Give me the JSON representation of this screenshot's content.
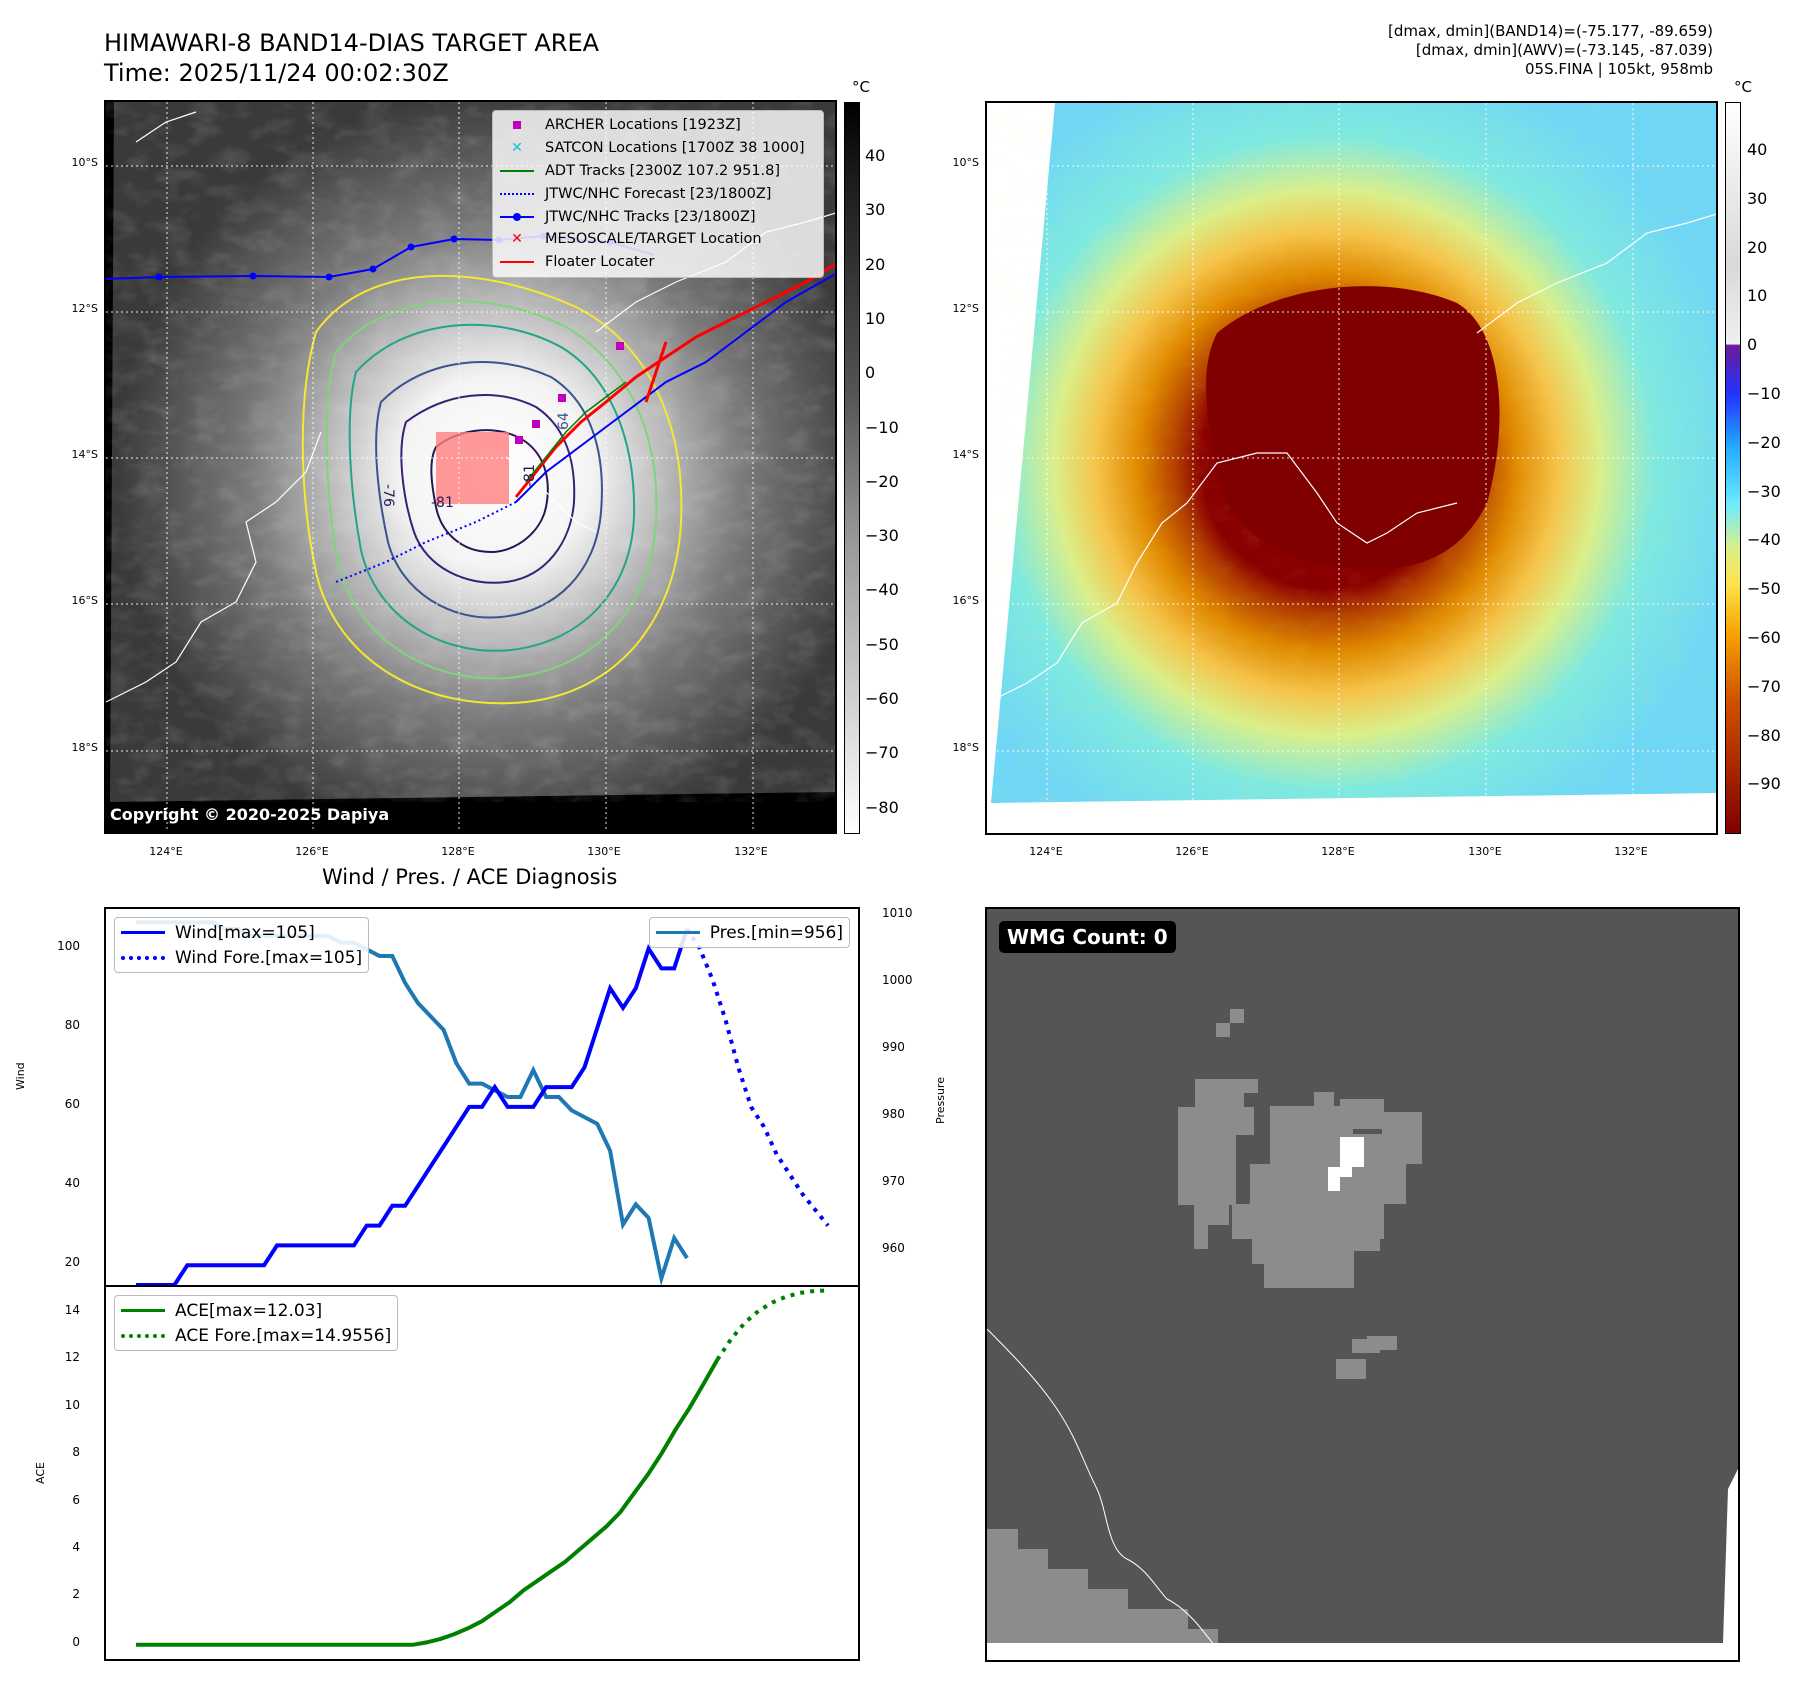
{
  "header": {
    "title_line1": "HIMAWARI-8 BAND14-DIAS TARGET AREA",
    "title_line2": "Time: 2025/11/24 00:02:30Z",
    "info_line1": "[dmax, dmin](BAND14)=(-75.177, -89.659)",
    "info_line2": "[dmax, dmin](AWV)=(-73.145, -87.039)",
    "info_line3": "05S.FINA | 105kt, 958mb"
  },
  "map": {
    "lat_labels": [
      "10°S",
      "12°S",
      "14°S",
      "16°S",
      "18°S"
    ],
    "lon_labels": [
      "124°E",
      "126°E",
      "128°E",
      "130°E",
      "132°E"
    ],
    "copyright": "Copyright © 2020-2025 Dapiya",
    "contour_labels": [
      "-76",
      "-81",
      "-81",
      "64"
    ]
  },
  "colorbar_gray": {
    "unit": "°C",
    "ticks": [
      "40",
      "30",
      "20",
      "10",
      "0",
      "−10",
      "−20",
      "−30",
      "−40",
      "−50",
      "−60",
      "−70",
      "−80"
    ]
  },
  "colorbar_color": {
    "unit": "°C",
    "ticks": [
      "40",
      "30",
      "20",
      "10",
      "0",
      "−10",
      "−20",
      "−30",
      "−40",
      "−50",
      "−60",
      "−70",
      "−80",
      "−90"
    ]
  },
  "legend": {
    "items": [
      {
        "label": "ARCHER Locations [1923Z]",
        "color": "#bf00bf",
        "symbol": "square"
      },
      {
        "label": "SATCON Locations [1700Z 38 1000]",
        "color": "#17becf",
        "symbol": "x"
      },
      {
        "label": "ADT Tracks [2300Z 107.2 951.8]",
        "color": "#008000",
        "symbol": "line"
      },
      {
        "label": "JTWC/NHC Forecast [23/1800Z]",
        "color": "#0000ff",
        "symbol": "dotted"
      },
      {
        "label": "JTWC/NHC Tracks [23/1800Z]",
        "color": "#0000ff",
        "symbol": "line-dot"
      },
      {
        "label": "MESOSCALE/TARGET Location",
        "color": "#ff0000",
        "symbol": "x"
      },
      {
        "label": "Floater Locater",
        "color": "#ff0000",
        "symbol": "line"
      }
    ]
  },
  "diagnosis": {
    "title": "Wind / Pres. / ACE Diagnosis",
    "wind_ylabel": "Wind",
    "pres_ylabel": "Pressure",
    "ace_ylabel": "ACE",
    "wind_ticks": [
      "100",
      "80",
      "60",
      "40",
      "20"
    ],
    "pres_ticks": [
      "1010",
      "1000",
      "990",
      "980",
      "970",
      "960"
    ],
    "ace_ticks": [
      "14",
      "12",
      "10",
      "8",
      "6",
      "4",
      "2",
      "0"
    ],
    "legend_wind": "Wind[max=105]",
    "legend_wind_fore": "Wind Fore.[max=105]",
    "legend_pres": "Pres.[min=956]",
    "legend_ace": "ACE[max=12.03]",
    "legend_ace_fore": "ACE Fore.[max=14.9556]"
  },
  "wmg": {
    "badge": "WMG Count: 0"
  },
  "colors": {
    "wind": "#0000ff",
    "pressure": "#1f77b4",
    "ace": "#008000",
    "wmg_bg": "#555555",
    "wmg_mid": "#8c8c8c",
    "wmg_hi": "#ffffff"
  },
  "chart_data": [
    {
      "type": "line",
      "title": "Wind / Pres. / ACE Diagnosis",
      "ylabel": "Wind",
      "ylim": [
        15,
        110
      ],
      "series": [
        {
          "name": "Wind[max=105]",
          "values": [
            15,
            15,
            15,
            15,
            20,
            20,
            20,
            20,
            20,
            20,
            20,
            25,
            25,
            25,
            25,
            25,
            25,
            25,
            30,
            30,
            35,
            35,
            40,
            45,
            50,
            55,
            60,
            60,
            65,
            60,
            60,
            60,
            65,
            65,
            65,
            70,
            80,
            90,
            85,
            90,
            100,
            95,
            95,
            105
          ]
        },
        {
          "name": "Wind Fore.[max=105]",
          "values": [
            null,
            null,
            null,
            null,
            null,
            null,
            null,
            null,
            null,
            null,
            null,
            null,
            null,
            null,
            null,
            null,
            null,
            null,
            null,
            null,
            null,
            null,
            null,
            null,
            null,
            null,
            null,
            null,
            null,
            null,
            null,
            null,
            null,
            null,
            null,
            null,
            null,
            null,
            null,
            null,
            null,
            null,
            null,
            105,
            100,
            92,
            82,
            70,
            60,
            55,
            48,
            43,
            38,
            34,
            30
          ]
        }
      ]
    },
    {
      "type": "line",
      "ylabel": "Pressure",
      "ylim": [
        955,
        1011
      ],
      "series": [
        {
          "name": "Pres.[min=956]",
          "values": [
            1009,
            1009,
            1009,
            1009,
            1009,
            1009,
            1009,
            1008,
            1008,
            1007,
            1007,
            1007,
            1007,
            1007,
            1007,
            1007,
            1006,
            1006,
            1005,
            1004,
            1004,
            1000,
            997,
            995,
            993,
            988,
            985,
            985,
            984,
            983,
            983,
            987,
            983,
            983,
            981,
            980,
            979,
            975,
            964,
            967,
            965,
            956,
            962,
            959
          ]
        }
      ]
    },
    {
      "type": "line",
      "ylabel": "ACE",
      "ylim": [
        -0.6,
        15.1
      ],
      "series": [
        {
          "name": "ACE[max=12.03]",
          "values": [
            0,
            0,
            0,
            0,
            0,
            0,
            0,
            0,
            0,
            0,
            0,
            0,
            0,
            0,
            0,
            0,
            0,
            0,
            0,
            0,
            0,
            0.1,
            0.25,
            0.45,
            0.7,
            1.0,
            1.4,
            1.8,
            2.3,
            2.7,
            3.1,
            3.5,
            4.0,
            4.5,
            5.0,
            5.6,
            6.4,
            7.2,
            8.1,
            9.1,
            10.0,
            11.0,
            12.03
          ]
        },
        {
          "name": "ACE Fore.[max=14.9556]",
          "values": [
            null,
            null,
            null,
            null,
            null,
            null,
            null,
            null,
            null,
            null,
            null,
            null,
            null,
            null,
            null,
            null,
            null,
            null,
            null,
            null,
            null,
            null,
            null,
            null,
            null,
            null,
            null,
            null,
            null,
            null,
            null,
            null,
            null,
            null,
            null,
            null,
            null,
            null,
            null,
            null,
            null,
            null,
            12.03,
            12.9,
            13.6,
            14.1,
            14.45,
            14.7,
            14.85,
            14.93,
            14.9556
          ]
        }
      ]
    }
  ]
}
